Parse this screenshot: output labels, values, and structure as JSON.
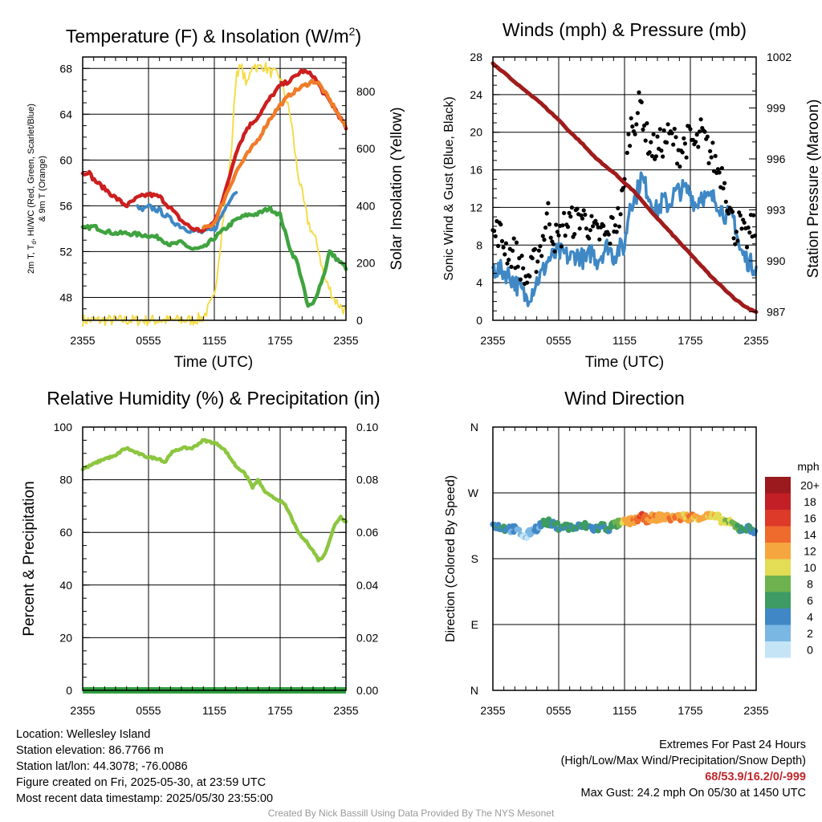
{
  "panels": {
    "temp": {
      "title_main": "Temperature (F) & Insolation (W/m",
      "title_sup": "2",
      "title_end": ")",
      "ylabel_lines": [
        "2m T, T",
        "d",
        ", HI/WC (Red, Green, Scarlet/Blue)",
        "& 9m T (Orange)"
      ],
      "y2label": "Solar Insolation (Yellow)",
      "xlabel": "Time (UTC)"
    },
    "wind": {
      "title": "Winds (mph) & Pressure (mb)",
      "ylabel": "Sonic Wind & Gust (Blue, Black)",
      "y2label": "Station Pressure (Maroon)",
      "xlabel": "Time (UTC)"
    },
    "rh": {
      "title": "Relative Humidity (%) & Precipitation (in)",
      "ylabel": "Percent & Precipitation"
    },
    "dir": {
      "title": "Wind Direction",
      "ylabel": "Direction (Colored By Speed)",
      "colorbar_title": "mph"
    }
  },
  "chart_data": [
    {
      "type": "line",
      "title": "Temperature (F) & Insolation (W/m2)",
      "xlabel": "Time (UTC)",
      "x_ticks": [
        "2355",
        "0555",
        "1155",
        "1755",
        "2355"
      ],
      "x_range_hours": [
        0,
        24
      ],
      "ylim": [
        46,
        69
      ],
      "y_ticks": [
        48,
        52,
        56,
        60,
        64,
        68
      ],
      "y2lim": [
        0,
        920
      ],
      "y2_ticks": [
        0,
        200,
        400,
        600,
        800
      ],
      "series": [
        {
          "name": "2m T",
          "color": "#cc1f1f",
          "axis": "left",
          "x": [
            0,
            0.5,
            1,
            2,
            3,
            4,
            5,
            6,
            7,
            8,
            9,
            10,
            11,
            12,
            13,
            14,
            15,
            16,
            17,
            18,
            19,
            20,
            21,
            21.5,
            22,
            23,
            24
          ],
          "y": [
            58.8,
            59,
            58.3,
            57.5,
            56.7,
            56,
            56.7,
            57,
            56.8,
            55.8,
            54.7,
            54,
            53.8,
            54.6,
            57.2,
            60.8,
            62.8,
            63.8,
            65.3,
            66.5,
            67,
            67.8,
            67.4,
            66.6,
            65.8,
            64.5,
            62.8
          ]
        },
        {
          "name": "9m T",
          "color": "#f07c2a",
          "axis": "left",
          "x": [
            11,
            12,
            13,
            14,
            15,
            16,
            17,
            18,
            19,
            20,
            21,
            21.5,
            22,
            23,
            24
          ],
          "y": [
            54,
            54.5,
            56.8,
            59,
            60.5,
            61.8,
            63.5,
            64.8,
            65.8,
            66.4,
            66.9,
            66.7,
            66,
            64.5,
            62.8
          ]
        },
        {
          "name": "Td",
          "color": "#3fa33f",
          "axis": "left",
          "x": [
            0,
            1,
            2,
            3,
            4,
            5,
            6,
            7,
            8,
            9,
            10,
            11,
            12,
            13,
            14,
            15,
            16,
            17,
            18,
            18.5,
            19,
            19.5,
            20,
            20.5,
            21,
            22,
            22.5,
            23,
            24
          ],
          "y": [
            54,
            54.2,
            53.8,
            53.6,
            53.6,
            53.5,
            53.4,
            53.2,
            52.6,
            52.8,
            52.2,
            52.3,
            53.2,
            54,
            54.8,
            55.2,
            55.3,
            55.8,
            55.2,
            53.5,
            52,
            51.2,
            49.5,
            47.2,
            47.4,
            50,
            52,
            51.5,
            50.6
          ]
        },
        {
          "name": "HI/WC",
          "color": "#3f88c5",
          "axis": "left",
          "x": [
            5,
            5.5,
            6,
            7,
            8,
            9,
            10,
            11,
            12,
            13,
            13.5,
            14
          ],
          "y": [
            55.8,
            55.6,
            55.9,
            55.6,
            54.8,
            54.2,
            53.8,
            53.7,
            53.9,
            55.8,
            56.8,
            57.3
          ]
        },
        {
          "name": "Solar Insolation",
          "color": "#f5dc4a",
          "axis": "right",
          "x": [
            0,
            9,
            10,
            11,
            12,
            12.5,
            13,
            13.5,
            14,
            14.5,
            15,
            15.5,
            16,
            16.5,
            17,
            17.5,
            18,
            18.5,
            19,
            19.5,
            20,
            20.5,
            21,
            21.5,
            22,
            23,
            24
          ],
          "y": [
            0,
            0,
            0,
            10,
            80,
            250,
            420,
            560,
            870,
            880,
            820,
            900,
            880,
            890,
            870,
            860,
            850,
            780,
            700,
            540,
            440,
            350,
            300,
            250,
            150,
            70,
            30
          ]
        }
      ]
    },
    {
      "type": "line",
      "title": "Winds (mph) & Pressure (mb)",
      "xlabel": "Time (UTC)",
      "x_ticks": [
        "2355",
        "0555",
        "1155",
        "1755",
        "2355"
      ],
      "x_range_hours": [
        0,
        24
      ],
      "ylim": [
        0,
        28
      ],
      "y_ticks": [
        0,
        4,
        8,
        12,
        16,
        20,
        24,
        28
      ],
      "y2lim": [
        986.5,
        1002
      ],
      "y2_ticks": [
        987,
        990,
        993,
        996,
        999,
        1002
      ],
      "series": [
        {
          "name": "Sonic Wind",
          "color": "#3f88c5",
          "axis": "left",
          "x": [
            0,
            1,
            1.5,
            2,
            2.5,
            3,
            3.5,
            4,
            4.5,
            5,
            5.5,
            6,
            6.5,
            7,
            7.5,
            8,
            8.5,
            9,
            9.5,
            10,
            10.5,
            11,
            11.5,
            12,
            12.5,
            13,
            13.5,
            14,
            14.5,
            15,
            15.5,
            16,
            16.5,
            17,
            17.5,
            18,
            18.5,
            19,
            19.5,
            20,
            20.5,
            21,
            21.5,
            22,
            22.5,
            23,
            23.5,
            24
          ],
          "y": [
            5.5,
            5.2,
            4.8,
            4,
            3.3,
            2.4,
            3,
            4.2,
            5,
            6.4,
            6.8,
            7.2,
            7,
            6.6,
            7,
            6.8,
            6.2,
            7.4,
            6.4,
            7.2,
            8,
            6.8,
            7.6,
            7.8,
            12.6,
            13,
            15.2,
            14,
            12.5,
            11.5,
            12.8,
            12.2,
            13.4,
            13.8,
            13.9,
            13.6,
            12.2,
            13.5,
            12.8,
            13,
            12.6,
            11.5,
            11,
            10.8,
            7.5,
            6.6,
            6,
            5.8
          ]
        },
        {
          "name": "Gust",
          "color": "#000000",
          "axis": "left",
          "x": [
            0,
            0.5,
            1,
            1.5,
            2,
            2.5,
            3,
            3.5,
            4,
            4.5,
            5,
            5.5,
            6,
            6.5,
            7,
            7.5,
            8,
            8.5,
            9,
            9.5,
            10,
            10.5,
            11,
            11.5,
            12,
            12.5,
            13,
            13.5,
            14,
            14.5,
            15,
            15.5,
            16,
            16.5,
            17,
            17.5,
            18,
            18.5,
            19,
            19.5,
            20,
            20.5,
            21,
            21.5,
            22,
            22.5,
            23,
            23.5,
            24
          ],
          "y": [
            9,
            9.5,
            8.2,
            7,
            7.3,
            6,
            4.3,
            5.2,
            6.8,
            8.3,
            11.5,
            9,
            8.5,
            10.2,
            10.5,
            10.4,
            11.2,
            10.6,
            9.6,
            9,
            9.4,
            8.6,
            10.4,
            10.8,
            14.2,
            20.5,
            21.5,
            23.2,
            19.5,
            18.2,
            18.4,
            19,
            19.5,
            19.2,
            17.8,
            18.8,
            19.4,
            18.3,
            20,
            18.4,
            17.5,
            16,
            15.5,
            12.3,
            9.5,
            10.2,
            8.5,
            9.5,
            10.4
          ]
        },
        {
          "name": "Station Pressure",
          "color": "#a01c1c",
          "axis": "right",
          "x": [
            0,
            1,
            2,
            3,
            4,
            5,
            6,
            7,
            8,
            9,
            10,
            11,
            12,
            13,
            14,
            15,
            16,
            17,
            18,
            19,
            20,
            21,
            22,
            23,
            24
          ],
          "y": [
            1001.6,
            1001.1,
            1000.5,
            1000,
            999.5,
            998.9,
            998.3,
            997.6,
            997,
            996.3,
            995.7,
            995.2,
            994.6,
            994,
            993.2,
            992.5,
            991.8,
            991.1,
            990.4,
            989.7,
            989,
            988.4,
            987.8,
            987.3,
            987
          ]
        }
      ]
    },
    {
      "type": "line",
      "title": "Relative Humidity (%) & Precipitation (in)",
      "x_ticks": [
        "2355",
        "0555",
        "1155",
        "1755",
        "2355"
      ],
      "x_range_hours": [
        0,
        24
      ],
      "ylim": [
        0,
        100
      ],
      "y_ticks": [
        0,
        20,
        40,
        60,
        80,
        100
      ],
      "y2lim": [
        0,
        0.1
      ],
      "y2_ticks": [
        "0.00",
        "0.02",
        "0.04",
        "0.06",
        "0.08",
        "0.10"
      ],
      "series": [
        {
          "name": "Relative Humidity",
          "color": "#8cc63f",
          "axis": "left",
          "x": [
            0,
            1,
            2,
            3,
            3.5,
            4,
            5,
            6,
            7,
            7.5,
            8,
            9,
            10,
            10.5,
            11,
            12,
            12.5,
            13,
            13.5,
            14,
            14.5,
            15,
            15.5,
            16,
            16.5,
            17,
            17.5,
            18,
            18.5,
            19,
            19.5,
            20,
            20.5,
            21,
            21.5,
            22,
            22.5,
            23,
            23.5,
            24
          ],
          "y": [
            84,
            86,
            88,
            89,
            91,
            92,
            90,
            88.5,
            88,
            86.5,
            90,
            92,
            92,
            93.5,
            95,
            94,
            93,
            91,
            88,
            85,
            83.5,
            81,
            77,
            80,
            76,
            74,
            73,
            72,
            70,
            66,
            61,
            58,
            56,
            53,
            49.5,
            51,
            57,
            63,
            66,
            64
          ]
        },
        {
          "name": "Precipitation",
          "color": "#2e9e3e",
          "axis": "right",
          "x": [
            0,
            24
          ],
          "y": [
            0,
            0
          ]
        }
      ]
    },
    {
      "type": "scatter",
      "title": "Wind Direction",
      "x_ticks": [
        "2355",
        "0555",
        "1155",
        "1755",
        "2355"
      ],
      "x_range_hours": [
        0,
        24
      ],
      "y_categories": [
        "N",
        "E",
        "S",
        "W",
        "N"
      ],
      "ylim_degrees": [
        0,
        360
      ],
      "color_scale_label": "mph",
      "color_scale": [
        {
          "label": "0",
          "color": "#c5e4f6"
        },
        {
          "label": "2",
          "color": "#7ab7e3"
        },
        {
          "label": "4",
          "color": "#3f88c5"
        },
        {
          "label": "6",
          "color": "#3d9b63"
        },
        {
          "label": "8",
          "color": "#6db24f"
        },
        {
          "label": "10",
          "color": "#e3dc55"
        },
        {
          "label": "12",
          "color": "#f6a63f"
        },
        {
          "label": "14",
          "color": "#ef6a2d"
        },
        {
          "label": "16",
          "color": "#dd3a2a"
        },
        {
          "label": "18",
          "color": "#c21f26"
        },
        {
          "label": "20+",
          "color": "#9b1a1d"
        }
      ],
      "x": [
        0,
        0.5,
        1,
        1.5,
        2,
        2.5,
        3,
        3.5,
        4,
        4.5,
        5,
        5.5,
        6,
        6.5,
        7,
        7.5,
        8,
        8.5,
        9,
        9.5,
        10,
        10.5,
        11,
        11.5,
        12,
        12.5,
        13,
        13.5,
        14,
        14.5,
        15,
        15.5,
        16,
        16.5,
        17,
        17.5,
        18,
        18.5,
        19,
        19.5,
        20,
        20.5,
        21,
        21.5,
        22,
        22.5,
        23,
        23.5,
        24
      ],
      "y": [
        226,
        224,
        222,
        221,
        220,
        215,
        209,
        218,
        222,
        228,
        230,
        226,
        224,
        224,
        223,
        222,
        224,
        225,
        222,
        221,
        225,
        221,
        226,
        228,
        230,
        231,
        233,
        237,
        234,
        236,
        236,
        238,
        235,
        237,
        236,
        238,
        236,
        238,
        237,
        239,
        237,
        236,
        232,
        229,
        226,
        221,
        222,
        220,
        219
      ],
      "speed": [
        5,
        5,
        6,
        5,
        4,
        3,
        2,
        3,
        5,
        5,
        7,
        6,
        7,
        6,
        7,
        6,
        6,
        7,
        5,
        5,
        6,
        6,
        7,
        8,
        12,
        13,
        15,
        16,
        14,
        13,
        13,
        13,
        14,
        14,
        13,
        13,
        14,
        12,
        13,
        13,
        12,
        11,
        11,
        10,
        8,
        7,
        6,
        6,
        5
      ]
    }
  ],
  "info": {
    "location": "Location: Wellesley Island",
    "elevation": "Station elevation: 86.7766 m",
    "latlon": "Station lat/lon: 44.3078; -76.0086",
    "created": "Figure created on Fri, 2025-05-30, at 23:59 UTC",
    "recent": "Most recent data timestamp: 2025/05/30 23:55:00"
  },
  "extremes": {
    "title": "Extremes For Past 24 Hours",
    "legend": "(High/Low/Max Wind/Precipitation/Snow Depth)",
    "values": "68/53.9/16.2/0/-999",
    "gust": "Max Gust: 24.2 mph On 05/30 at 1450 UTC"
  },
  "credit": "Created By Nick Bassill Using Data Provided By The NYS Mesonet"
}
